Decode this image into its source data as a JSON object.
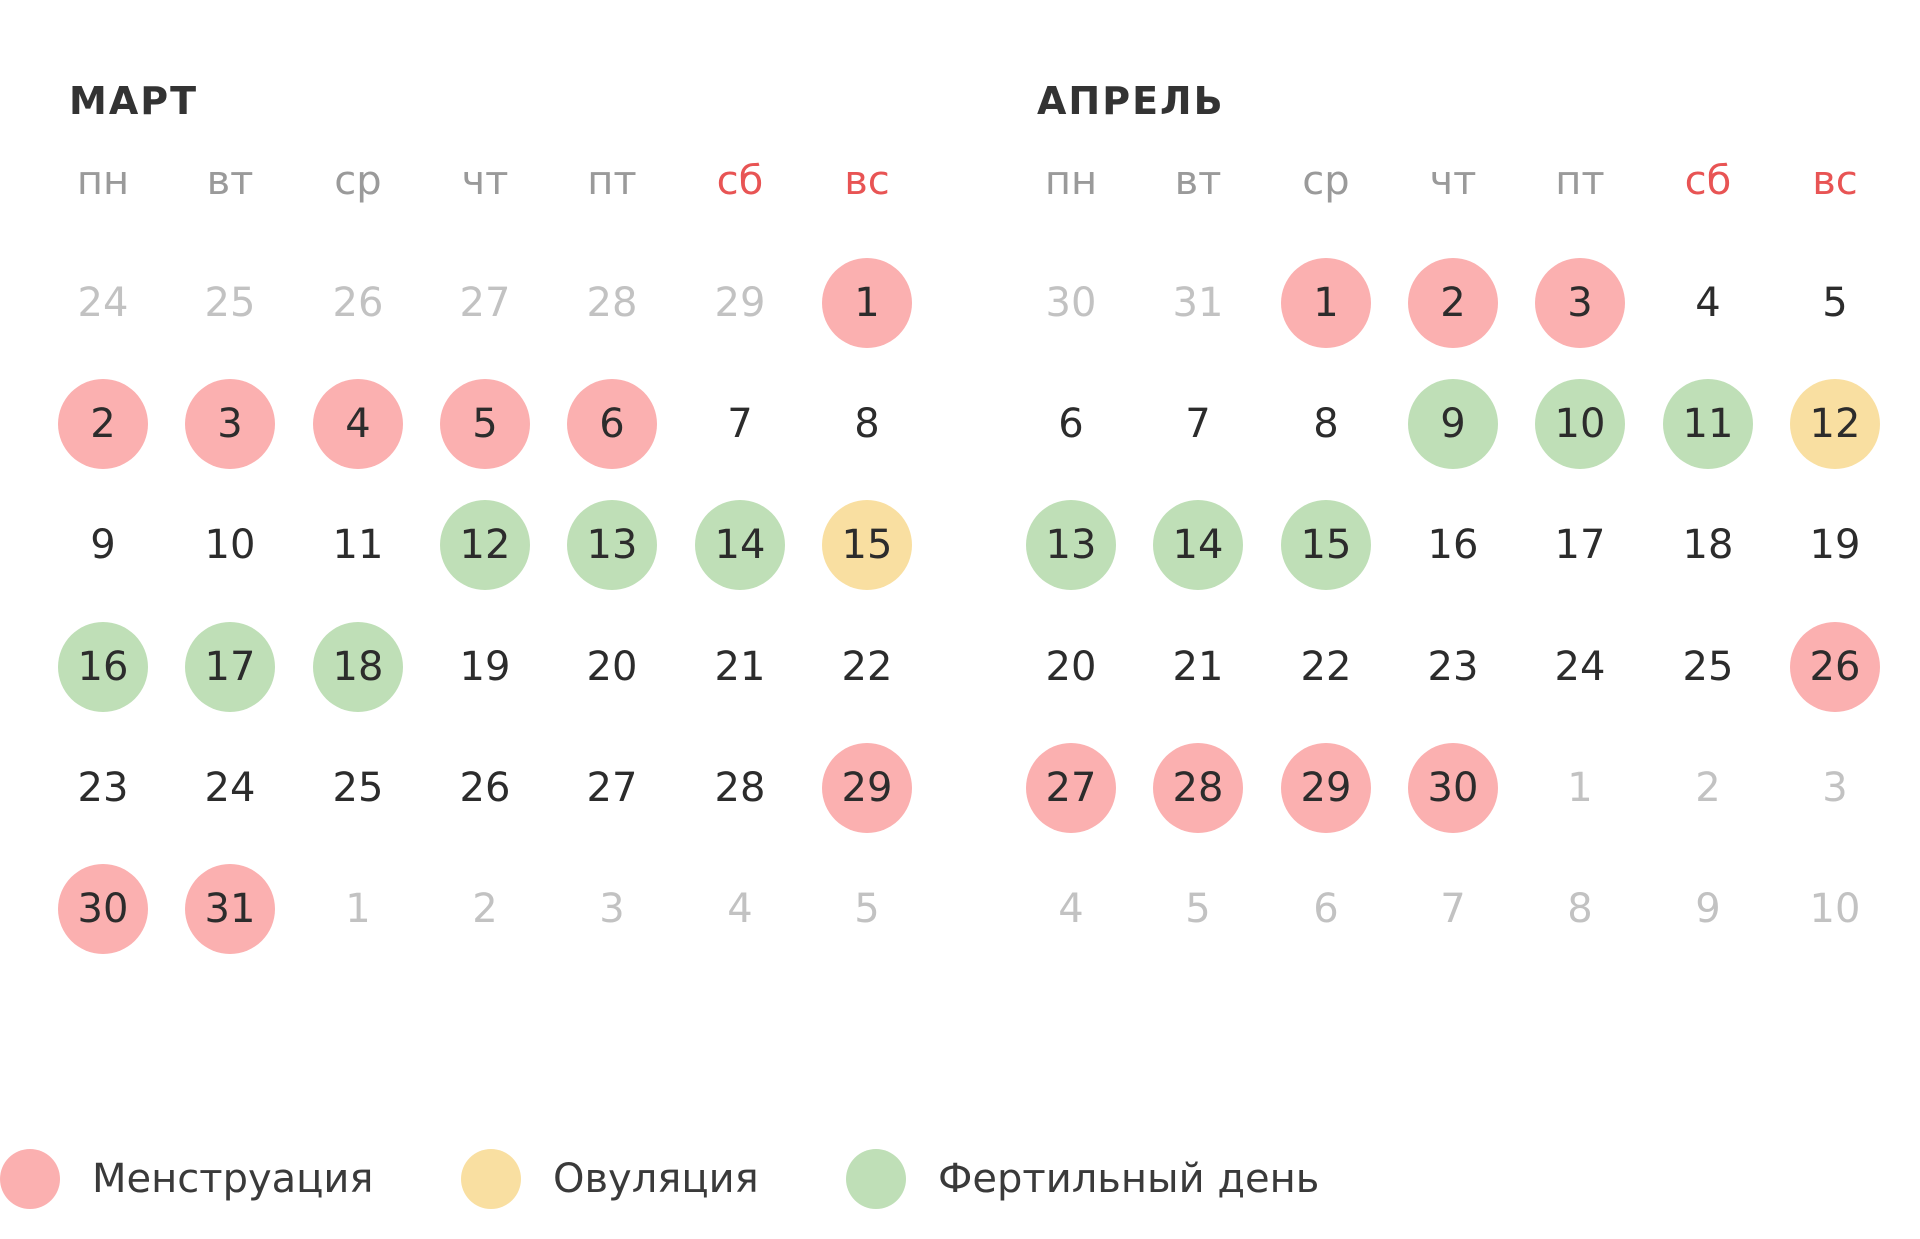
{
  "legend": [
    {
      "label": "Менструация",
      "color": "#fbb0b0",
      "status": "menstruation"
    },
    {
      "label": "Овуляция",
      "color": "#f9dfa1",
      "status": "ovulation"
    },
    {
      "label": "Фертильный день",
      "color": "#bfdfb7",
      "status": "fertile"
    }
  ],
  "months": [
    {
      "title": "МАРТ",
      "weekdays": [
        {
          "label": "пн",
          "weekend": false
        },
        {
          "label": "вт",
          "weekend": false
        },
        {
          "label": "ср",
          "weekend": false
        },
        {
          "label": "чт",
          "weekend": false
        },
        {
          "label": "пт",
          "weekend": false
        },
        {
          "label": "сб",
          "weekend": true
        },
        {
          "label": "вс",
          "weekend": true
        }
      ],
      "weeks": [
        [
          {
            "day": "24",
            "other": true
          },
          {
            "day": "25",
            "other": true
          },
          {
            "day": "26",
            "other": true
          },
          {
            "day": "27",
            "other": true
          },
          {
            "day": "28",
            "other": true
          },
          {
            "day": "29",
            "other": true
          },
          {
            "day": "1",
            "status": "menstruation"
          }
        ],
        [
          {
            "day": "2",
            "status": "menstruation"
          },
          {
            "day": "3",
            "status": "menstruation"
          },
          {
            "day": "4",
            "status": "menstruation"
          },
          {
            "day": "5",
            "status": "menstruation"
          },
          {
            "day": "6",
            "status": "menstruation"
          },
          {
            "day": "7"
          },
          {
            "day": "8"
          }
        ],
        [
          {
            "day": "9"
          },
          {
            "day": "10"
          },
          {
            "day": "11"
          },
          {
            "day": "12",
            "status": "fertile"
          },
          {
            "day": "13",
            "status": "fertile"
          },
          {
            "day": "14",
            "status": "fertile"
          },
          {
            "day": "15",
            "status": "ovulation"
          }
        ],
        [
          {
            "day": "16",
            "status": "fertile"
          },
          {
            "day": "17",
            "status": "fertile"
          },
          {
            "day": "18",
            "status": "fertile"
          },
          {
            "day": "19"
          },
          {
            "day": "20"
          },
          {
            "day": "21"
          },
          {
            "day": "22"
          }
        ],
        [
          {
            "day": "23"
          },
          {
            "day": "24"
          },
          {
            "day": "25"
          },
          {
            "day": "26"
          },
          {
            "day": "27"
          },
          {
            "day": "28"
          },
          {
            "day": "29",
            "status": "menstruation"
          }
        ],
        [
          {
            "day": "30",
            "status": "menstruation"
          },
          {
            "day": "31",
            "status": "menstruation"
          },
          {
            "day": "1",
            "other": true
          },
          {
            "day": "2",
            "other": true
          },
          {
            "day": "3",
            "other": true
          },
          {
            "day": "4",
            "other": true
          },
          {
            "day": "5",
            "other": true
          }
        ]
      ]
    },
    {
      "title": "АПРЕЛЬ",
      "weekdays": [
        {
          "label": "пн",
          "weekend": false
        },
        {
          "label": "вт",
          "weekend": false
        },
        {
          "label": "ср",
          "weekend": false
        },
        {
          "label": "чт",
          "weekend": false
        },
        {
          "label": "пт",
          "weekend": false
        },
        {
          "label": "сб",
          "weekend": true
        },
        {
          "label": "вс",
          "weekend": true
        }
      ],
      "weeks": [
        [
          {
            "day": "30",
            "other": true
          },
          {
            "day": "31",
            "other": true
          },
          {
            "day": "1",
            "status": "menstruation"
          },
          {
            "day": "2",
            "status": "menstruation"
          },
          {
            "day": "3",
            "status": "menstruation"
          },
          {
            "day": "4"
          },
          {
            "day": "5"
          }
        ],
        [
          {
            "day": "6"
          },
          {
            "day": "7"
          },
          {
            "day": "8"
          },
          {
            "day": "9",
            "status": "fertile"
          },
          {
            "day": "10",
            "status": "fertile"
          },
          {
            "day": "11",
            "status": "fertile"
          },
          {
            "day": "12",
            "status": "ovulation"
          }
        ],
        [
          {
            "day": "13",
            "status": "fertile"
          },
          {
            "day": "14",
            "status": "fertile"
          },
          {
            "day": "15",
            "status": "fertile"
          },
          {
            "day": "16"
          },
          {
            "day": "17"
          },
          {
            "day": "18"
          },
          {
            "day": "19"
          }
        ],
        [
          {
            "day": "20"
          },
          {
            "day": "21"
          },
          {
            "day": "22"
          },
          {
            "day": "23"
          },
          {
            "day": "24"
          },
          {
            "day": "25"
          },
          {
            "day": "26",
            "status": "menstruation"
          }
        ],
        [
          {
            "day": "27",
            "status": "menstruation"
          },
          {
            "day": "28",
            "status": "menstruation"
          },
          {
            "day": "29",
            "status": "menstruation"
          },
          {
            "day": "30",
            "status": "menstruation"
          },
          {
            "day": "1",
            "other": true
          },
          {
            "day": "2",
            "other": true
          },
          {
            "day": "3",
            "other": true
          }
        ],
        [
          {
            "day": "4",
            "other": true
          },
          {
            "day": "5",
            "other": true
          },
          {
            "day": "6",
            "other": true
          },
          {
            "day": "7",
            "other": true
          },
          {
            "day": "8",
            "other": true
          },
          {
            "day": "9",
            "other": true
          },
          {
            "day": "10",
            "other": true
          }
        ]
      ]
    }
  ]
}
